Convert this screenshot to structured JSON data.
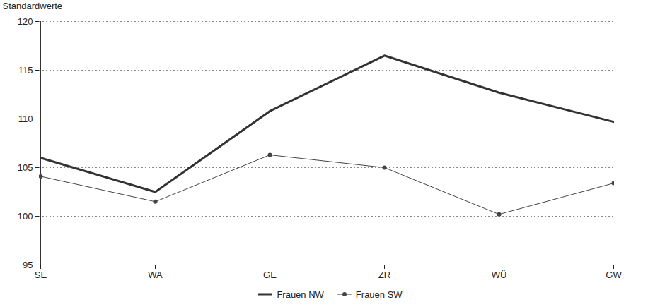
{
  "chart_data": {
    "type": "line",
    "y_label": "Standardwerte",
    "categories": [
      "SE",
      "WA",
      "GE",
      "ZR",
      "WÜ",
      "GW"
    ],
    "series": [
      {
        "name": "Frauen NW",
        "color": "#333333",
        "line_style": "thick",
        "marker": "none",
        "values": [
          106.0,
          102.5,
          110.8,
          116.5,
          112.7,
          109.7
        ]
      },
      {
        "name": "Frauen SW",
        "color": "#444444",
        "line_style": "thin",
        "marker": "circle",
        "values": [
          104.1,
          101.5,
          106.3,
          105.0,
          100.2,
          103.4
        ]
      }
    ],
    "ylim": [
      95,
      120
    ],
    "yticks": [
      95,
      100,
      105,
      110,
      115,
      120
    ],
    "grid": true,
    "legend": "bottom"
  }
}
